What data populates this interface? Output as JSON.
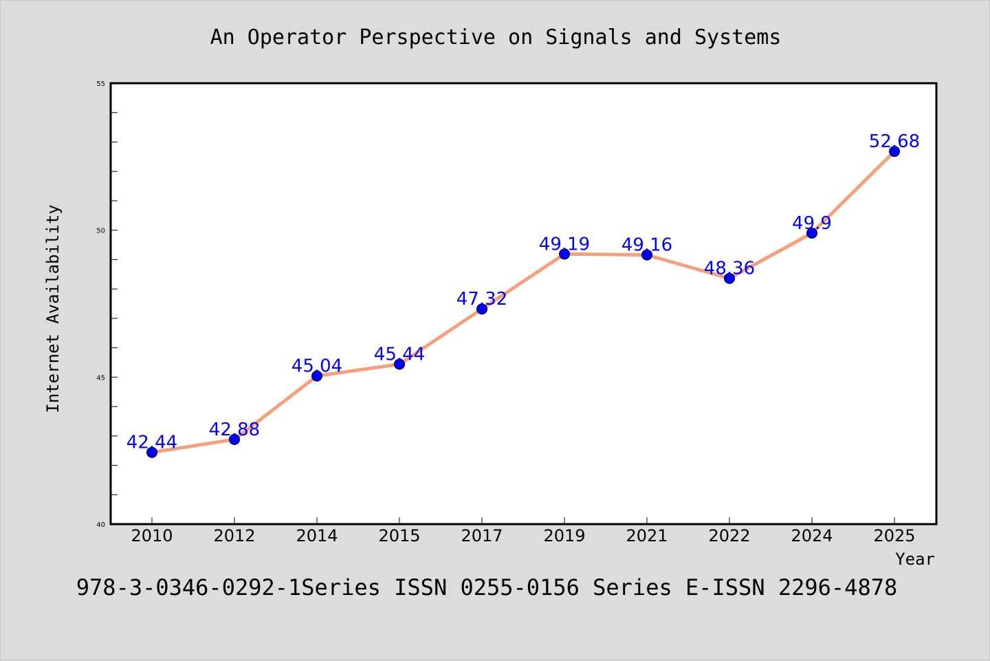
{
  "chart_data": {
    "type": "line",
    "title": "An Operator Perspective on Signals and Systems",
    "xlabel": "Year",
    "ylabel": "Internet Availability",
    "categories": [
      "2010",
      "2012",
      "2014",
      "2015",
      "2017",
      "2019",
      "2021",
      "2022",
      "2024",
      "2025"
    ],
    "values": [
      42.44,
      42.88,
      45.04,
      45.44,
      47.32,
      49.19,
      49.16,
      48.36,
      49.9,
      52.68
    ],
    "data_labels": [
      "42.44",
      "42.88",
      "45.04",
      "45.44",
      "47.32",
      "49.19",
      "49.16",
      "48.36",
      "49.9",
      "52.68"
    ],
    "ylim": [
      40,
      55
    ],
    "yticks": [
      "40",
      "45",
      "50",
      "55"
    ],
    "grid": false,
    "line_color": "#f4a07c",
    "marker_color": "#0000ff",
    "label_color": "#0000ff"
  },
  "footer": {
    "text": "978-3-0346-0292-1Series ISSN 0255-0156 Series E-ISSN 2296-4878"
  },
  "colors": {
    "background": "#dcdcdc",
    "plot_background": "#ffffff"
  }
}
